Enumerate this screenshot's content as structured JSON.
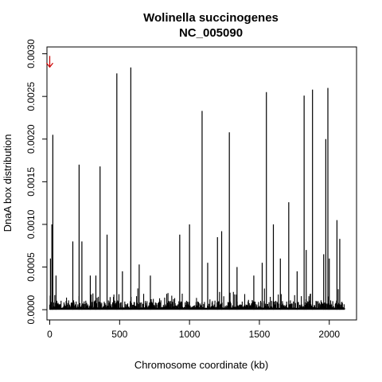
{
  "chart_data": {
    "type": "bar",
    "title": [
      "Wolinella succinogenes",
      "NC_005090"
    ],
    "xlabel": "Chromosome coordinate (kb)",
    "ylabel": "DnaA box distribution",
    "xlim": [
      -20,
      2195
    ],
    "ylim": [
      -0.00012,
      0.00308
    ],
    "x_ticks": [
      0,
      500,
      1000,
      1500,
      2000
    ],
    "x_tick_labels": [
      "0",
      "500",
      "1000",
      "1500",
      "2000"
    ],
    "y_ticks": [
      0,
      0.0005,
      0.001,
      0.0015,
      0.002,
      0.0025,
      0.003
    ],
    "y_tick_labels": [
      "0.0000",
      "0.0005",
      "0.0010",
      "0.0015",
      "0.0020",
      "0.0025",
      "0.0030"
    ],
    "origin_marker": {
      "x": 0,
      "y": 0.0029,
      "color": "#cc0000",
      "glyph": "down-arrow"
    },
    "bar_color": "#000000",
    "grid": false,
    "major_peaks": [
      {
        "x": 5,
        "value": 0.0006
      },
      {
        "x": 15,
        "value": 0.001
      },
      {
        "x": 22,
        "value": 0.00205
      },
      {
        "x": 45,
        "value": 0.0004
      },
      {
        "x": 165,
        "value": 0.0008
      },
      {
        "x": 210,
        "value": 0.0017
      },
      {
        "x": 230,
        "value": 0.0008
      },
      {
        "x": 290,
        "value": 0.0004
      },
      {
        "x": 330,
        "value": 0.0004
      },
      {
        "x": 360,
        "value": 0.00168
      },
      {
        "x": 410,
        "value": 0.00088
      },
      {
        "x": 480,
        "value": 0.00277
      },
      {
        "x": 520,
        "value": 0.00045
      },
      {
        "x": 580,
        "value": 0.00284
      },
      {
        "x": 640,
        "value": 0.00053
      },
      {
        "x": 720,
        "value": 0.0004
      },
      {
        "x": 930,
        "value": 0.00088
      },
      {
        "x": 1000,
        "value": 0.001
      },
      {
        "x": 1090,
        "value": 0.00233
      },
      {
        "x": 1130,
        "value": 0.00055
      },
      {
        "x": 1200,
        "value": 0.00085
      },
      {
        "x": 1230,
        "value": 0.00092
      },
      {
        "x": 1285,
        "value": 0.00208
      },
      {
        "x": 1340,
        "value": 0.0005
      },
      {
        "x": 1460,
        "value": 0.0004
      },
      {
        "x": 1520,
        "value": 0.00055
      },
      {
        "x": 1550,
        "value": 0.00255
      },
      {
        "x": 1600,
        "value": 0.001
      },
      {
        "x": 1650,
        "value": 0.0006
      },
      {
        "x": 1710,
        "value": 0.00126
      },
      {
        "x": 1770,
        "value": 0.00045
      },
      {
        "x": 1820,
        "value": 0.00251
      },
      {
        "x": 1835,
        "value": 0.0007
      },
      {
        "x": 1880,
        "value": 0.00258
      },
      {
        "x": 1960,
        "value": 0.00065
      },
      {
        "x": 1975,
        "value": 0.002
      },
      {
        "x": 1990,
        "value": 0.0026
      },
      {
        "x": 2000,
        "value": 0.0006
      },
      {
        "x": 2055,
        "value": 0.00105
      },
      {
        "x": 2075,
        "value": 0.00083
      }
    ]
  }
}
